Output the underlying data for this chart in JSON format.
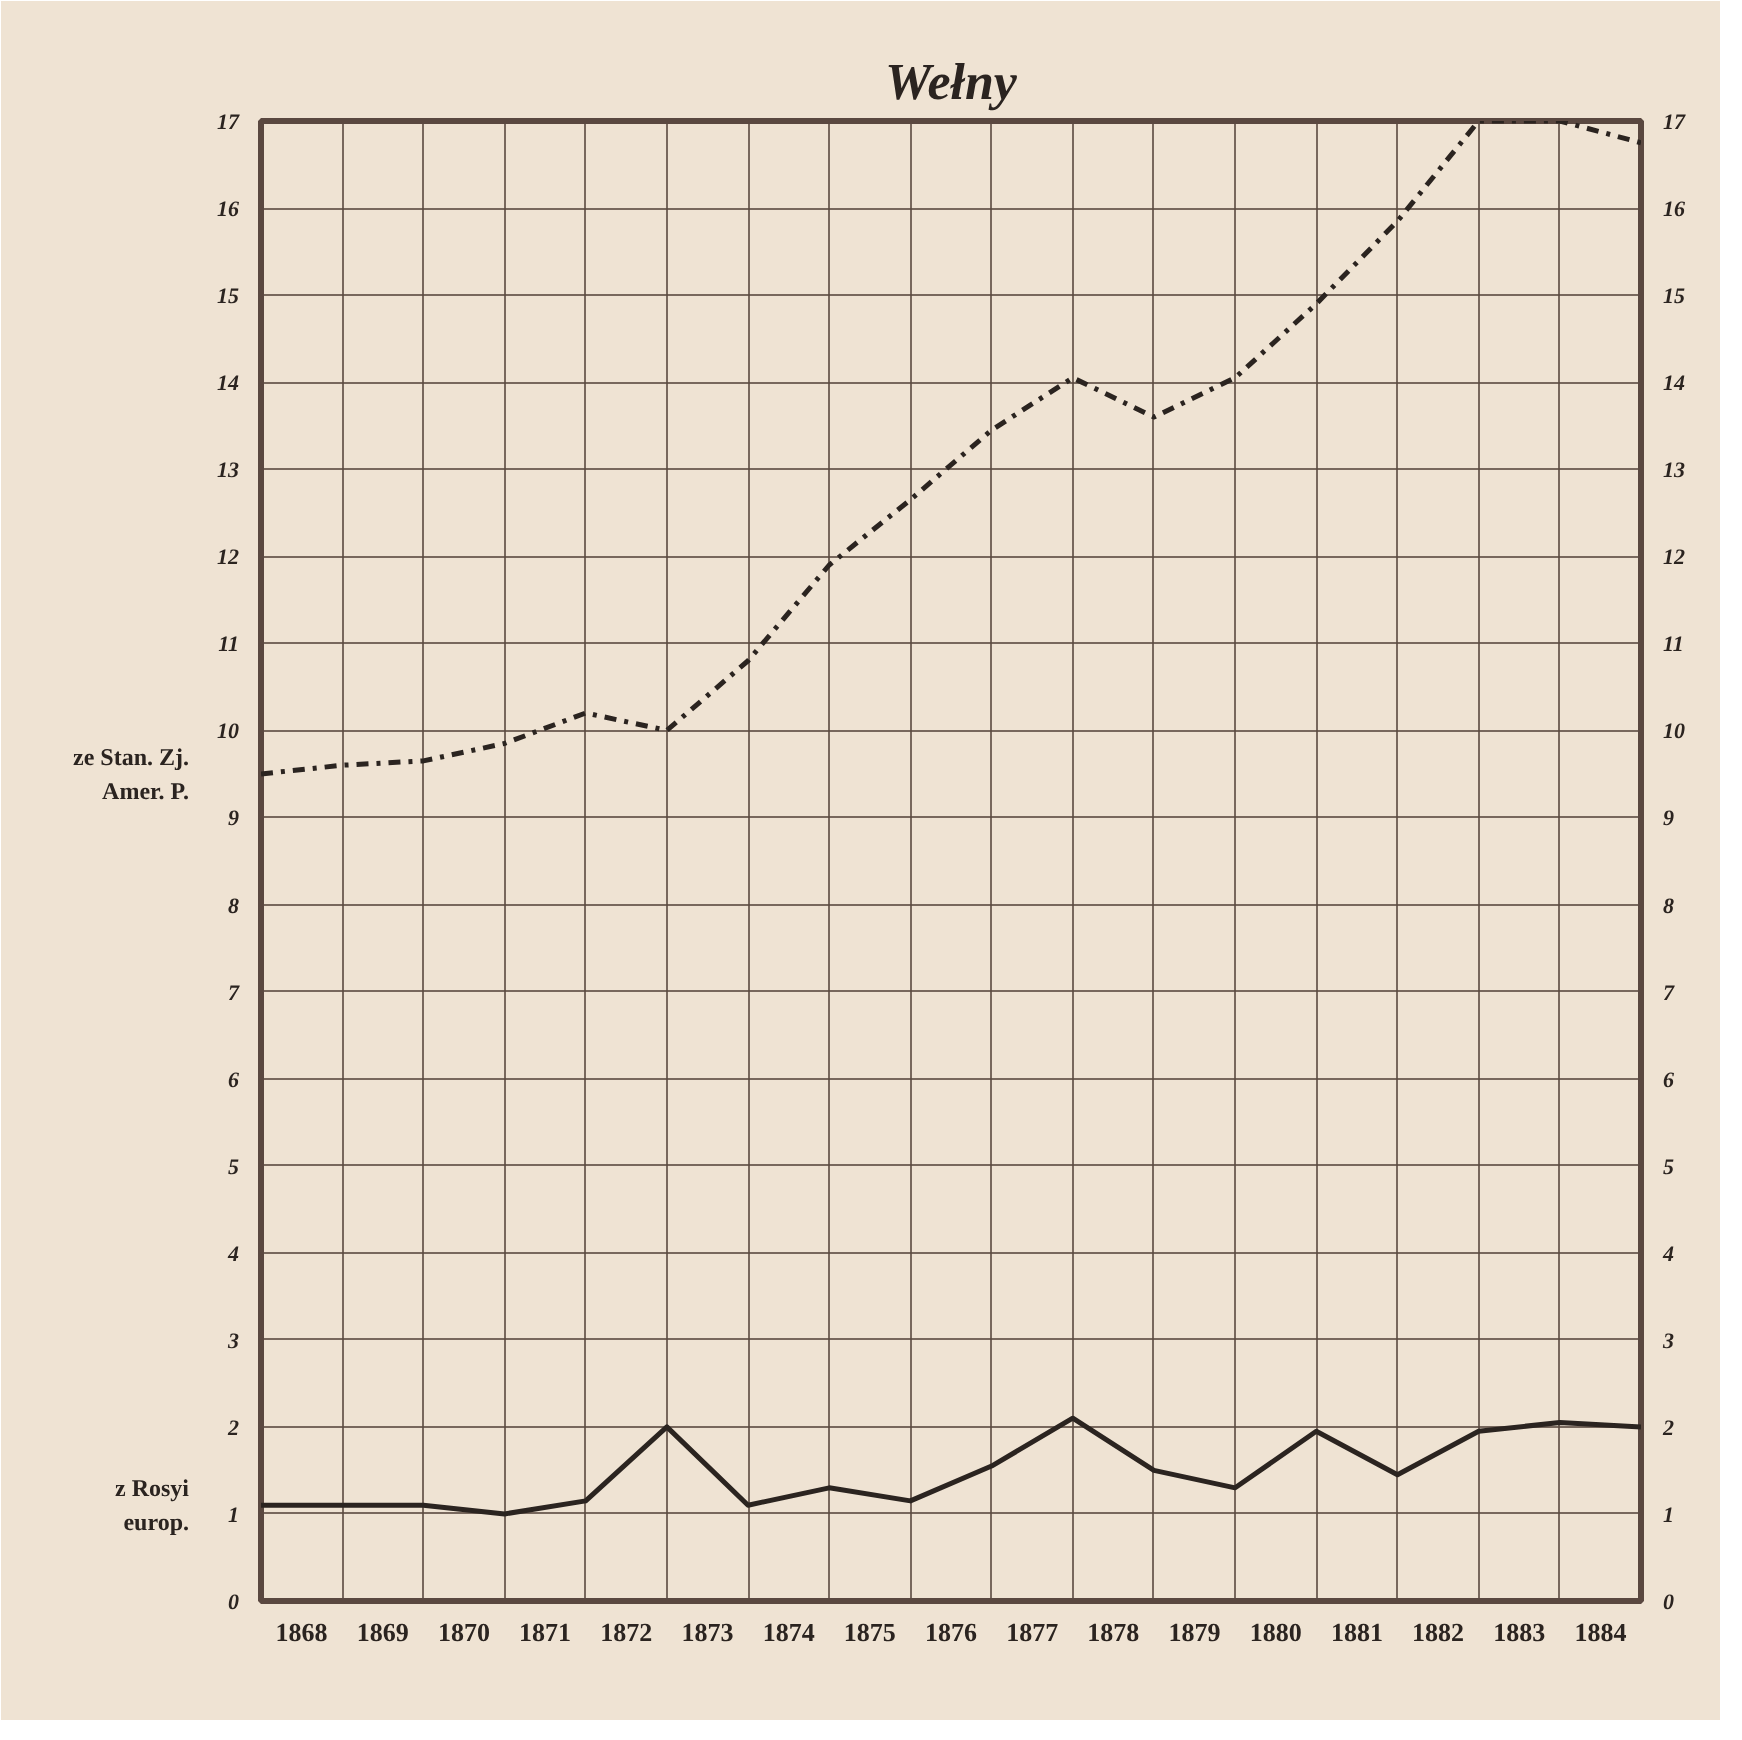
{
  "chart_data": {
    "type": "line",
    "title": "Wełny",
    "x": [
      1868,
      1869,
      1870,
      1871,
      1872,
      1873,
      1874,
      1875,
      1876,
      1877,
      1878,
      1879,
      1880,
      1881,
      1882,
      1883,
      1884,
      1885
    ],
    "xlim": [
      1868,
      1885
    ],
    "xticks": [
      {
        "value": 1868.5,
        "label": "1868"
      },
      {
        "value": 1869.5,
        "label": "1869"
      },
      {
        "value": 1870.5,
        "label": "1870"
      },
      {
        "value": 1871.5,
        "label": "1871"
      },
      {
        "value": 1872.5,
        "label": "1872"
      },
      {
        "value": 1873.5,
        "label": "1873"
      },
      {
        "value": 1874.5,
        "label": "1874"
      },
      {
        "value": 1875.5,
        "label": "1875"
      },
      {
        "value": 1876.5,
        "label": "1876"
      },
      {
        "value": 1877.5,
        "label": "1877"
      },
      {
        "value": 1878.5,
        "label": "1878"
      },
      {
        "value": 1879.5,
        "label": "1879"
      },
      {
        "value": 1880.5,
        "label": "1880"
      },
      {
        "value": 1881.5,
        "label": "1881"
      },
      {
        "value": 1882.5,
        "label": "1882"
      },
      {
        "value": 1883.5,
        "label": "1883"
      },
      {
        "value": 1884.5,
        "label": "1884"
      }
    ],
    "ylim": [
      0,
      17
    ],
    "yticks": [
      0,
      1,
      2,
      3,
      4,
      5,
      6,
      7,
      8,
      9,
      10,
      11,
      12,
      13,
      14,
      15,
      16,
      17
    ],
    "y2lim": [
      0,
      17
    ],
    "y2ticks": [
      0,
      1,
      2,
      3,
      4,
      5,
      6,
      7,
      8,
      9,
      10,
      11,
      12,
      13,
      14,
      15,
      16,
      17
    ],
    "grid": true,
    "marker": "none",
    "series": [
      {
        "name": "ze Stan. Zj. Amer. P.",
        "color": "#2b2420",
        "line_style": "dashdot",
        "values": [
          9.5,
          9.6,
          9.65,
          9.85,
          10.2,
          10.0,
          10.8,
          11.9,
          12.65,
          13.45,
          14.05,
          13.6,
          14.05,
          14.9,
          15.85,
          17.0,
          17.0,
          16.75
        ]
      },
      {
        "name": "z Rosyi europ.",
        "color": "#2b2420",
        "line_style": "solid",
        "values": [
          1.1,
          1.1,
          1.1,
          1.0,
          1.15,
          2.0,
          1.1,
          1.3,
          1.15,
          1.55,
          2.1,
          1.5,
          1.3,
          1.95,
          1.45,
          1.95,
          2.05,
          2.0
        ]
      }
    ]
  }
}
